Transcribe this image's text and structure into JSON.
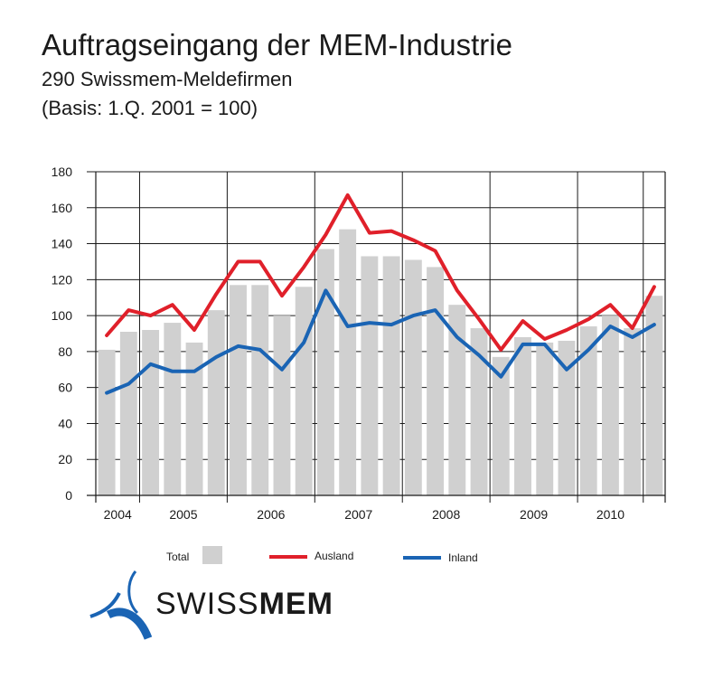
{
  "header": {
    "title": "Auftragseingang der MEM-Industrie",
    "subtitle": "290 Swissmem-Meldefirmen",
    "basis": "(Basis: 1.Q. 2001 = 100)"
  },
  "legend": {
    "total": "Total",
    "ausland": "Ausland",
    "inland": "Inland"
  },
  "logo": {
    "text_light": "SWISS",
    "text_bold": "MEM"
  },
  "colors": {
    "bar": "#d0d0d0",
    "ausland": "#e0202a",
    "inland": "#1a64b4",
    "logo_blue": "#1a64b4"
  },
  "chart_data": {
    "type": "bar",
    "title": "Auftragseingang der MEM-Industrie",
    "xlabel": "",
    "ylabel": "",
    "ylim": [
      0,
      180
    ],
    "yticks": [
      0,
      20,
      40,
      60,
      80,
      100,
      120,
      140,
      160,
      180
    ],
    "grid": true,
    "year_labels": [
      {
        "label": "2004",
        "start": 0,
        "end": 2
      },
      {
        "label": "2005",
        "start": 2,
        "end": 6
      },
      {
        "label": "2006",
        "start": 6,
        "end": 10
      },
      {
        "label": "2007",
        "start": 10,
        "end": 14
      },
      {
        "label": "2008",
        "start": 14,
        "end": 18
      },
      {
        "label": "2009",
        "start": 18,
        "end": 22
      },
      {
        "label": "2010",
        "start": 22,
        "end": 25
      }
    ],
    "categories": [
      "2004 Q3",
      "2004 Q4",
      "2005 Q1",
      "2005 Q2",
      "2005 Q3",
      "2005 Q4",
      "2006 Q1",
      "2006 Q2",
      "2006 Q3",
      "2006 Q4",
      "2007 Q1",
      "2007 Q2",
      "2007 Q3",
      "2007 Q4",
      "2008 Q1",
      "2008 Q2",
      "2008 Q3",
      "2008 Q4",
      "2009 Q1",
      "2009 Q2",
      "2009 Q3",
      "2009 Q4",
      "2010 Q1",
      "2010 Q2",
      "2010 Q3",
      "2010 Q4"
    ],
    "series": [
      {
        "name": "Total",
        "type": "bar",
        "values": [
          81,
          91,
          92,
          96,
          85,
          103,
          117,
          117,
          100,
          116,
          137,
          148,
          133,
          133,
          131,
          127,
          106,
          93,
          77,
          88,
          85,
          86,
          94,
          100,
          93,
          111
        ]
      },
      {
        "name": "Ausland",
        "type": "line",
        "values": [
          89,
          103,
          100,
          106,
          92,
          112,
          130,
          130,
          111,
          127,
          145,
          167,
          146,
          147,
          142,
          136,
          114,
          98,
          81,
          97,
          87,
          92,
          98,
          106,
          93,
          116
        ]
      },
      {
        "name": "Inland",
        "type": "line",
        "values": [
          57,
          62,
          73,
          69,
          69,
          77,
          83,
          81,
          70,
          85,
          114,
          94,
          96,
          95,
          100,
          103,
          88,
          78,
          66,
          84,
          84,
          70,
          81,
          94,
          88,
          95
        ]
      }
    ]
  }
}
